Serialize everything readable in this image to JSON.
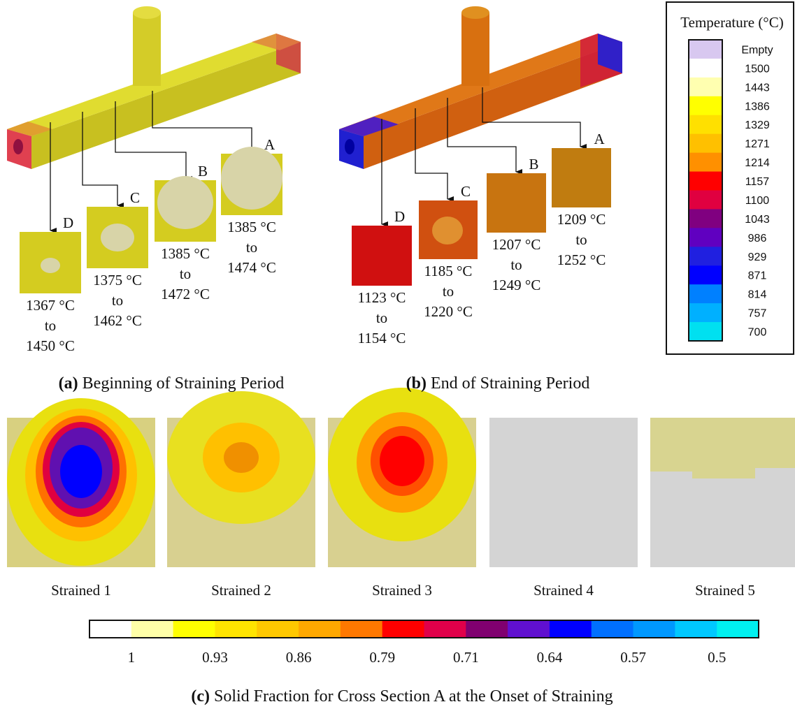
{
  "panels": {
    "a": {
      "label": "(a)",
      "caption": "Beginning of Straining Period",
      "sections": [
        {
          "label": "D",
          "min": "1367 °C",
          "to": "to",
          "max": "1450 °C"
        },
        {
          "label": "C",
          "min": "1375 °C",
          "to": "to",
          "max": "1462 °C"
        },
        {
          "label": "B",
          "min": "1385 °C",
          "to": "to",
          "max": "1472 °C"
        },
        {
          "label": "A",
          "min": "1385 °C",
          "to": "to",
          "max": "1474 °C"
        }
      ]
    },
    "b": {
      "label": "(b)",
      "caption": "End of Straining Period",
      "sections": [
        {
          "label": "D",
          "min": "1123 °C",
          "to": "to",
          "max": "1154 °C"
        },
        {
          "label": "C",
          "min": "1185 °C",
          "to": "to",
          "max": "1220 °C"
        },
        {
          "label": "B",
          "min": "1207 °C",
          "to": "to",
          "max": "1249 °C"
        },
        {
          "label": "A",
          "min": "1209 °C",
          "to": "to",
          "max": "1252 °C"
        }
      ]
    },
    "c": {
      "label": "(c)",
      "caption": "Solid Fraction for Cross Section A at the Onset of Straining",
      "images": [
        "Strained 1",
        "Strained 2",
        "Strained 3",
        "Strained 4",
        "Strained 5"
      ],
      "colorbar": {
        "labels": [
          "1",
          "0.93",
          "0.86",
          "0.79",
          "0.71",
          "0.64",
          "0.57",
          "0.5"
        ],
        "colors": [
          "#ffffff",
          "#ffffa8",
          "#ffff00",
          "#ffe400",
          "#ffc800",
          "#ffa800",
          "#ff7800",
          "#ff0000",
          "#e0004a",
          "#800070",
          "#6010d0",
          "#0000ff",
          "#0070ff",
          "#0098ff",
          "#00c8ff",
          "#00f0f0"
        ]
      }
    }
  },
  "legend": {
    "title": "Temperature (°C)",
    "entries": [
      "Empty",
      "1500",
      "1443",
      "1386",
      "1329",
      "1271",
      "1214",
      "1157",
      "1100",
      "1043",
      "986",
      "929",
      "871",
      "814",
      "757",
      "700"
    ],
    "colors": [
      "#d8c8f0",
      "#ffffff",
      "#ffffb0",
      "#ffff00",
      "#ffe000",
      "#ffc000",
      "#ff9000",
      "#ff0000",
      "#e00040",
      "#800080",
      "#6000c0",
      "#2020e0",
      "#0000ff",
      "#0080ff",
      "#00b0ff",
      "#00e0f0"
    ]
  }
}
